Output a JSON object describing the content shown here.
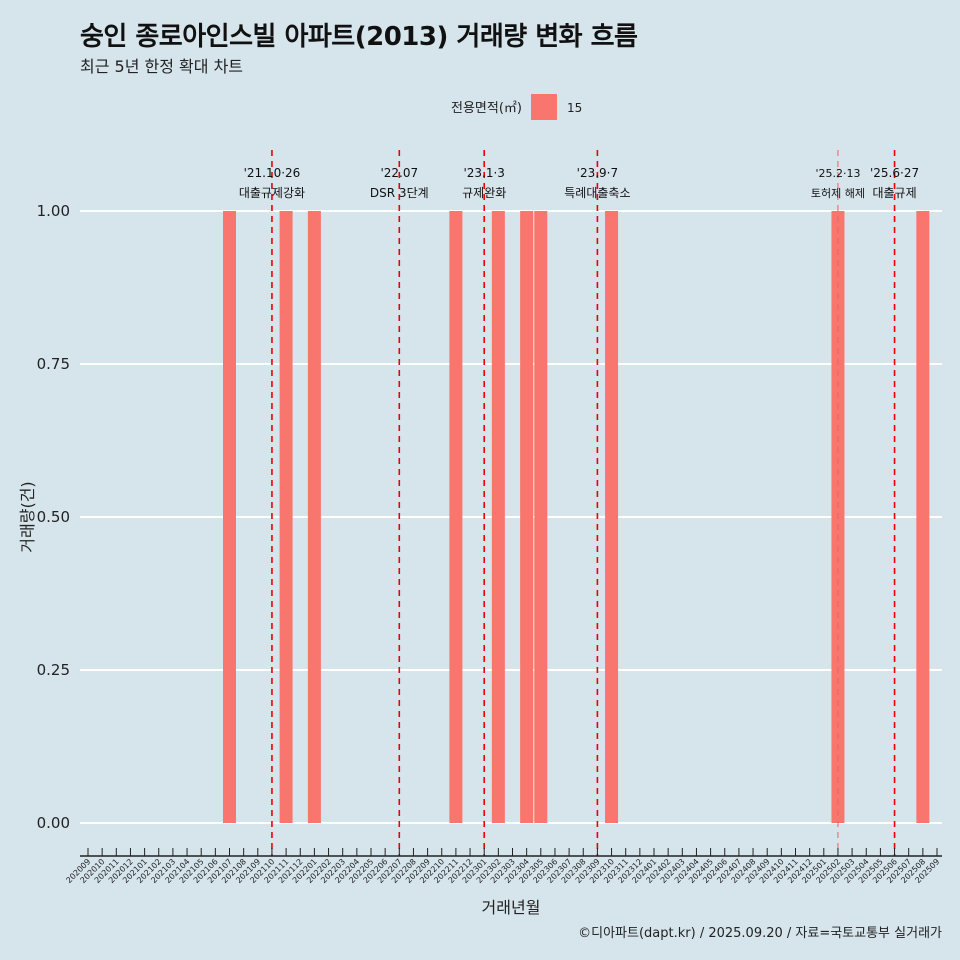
{
  "chart_data": {
    "type": "bar",
    "title": "숭인 종로아인스빌 아파트(2013) 거래량 변화 흐름",
    "subtitle": "최근 5년 한정 확대 차트",
    "xlabel": "거래년월",
    "ylabel": "거래량(건)",
    "ylim": [
      0,
      1
    ],
    "yticks": [
      "0.00",
      "0.25",
      "0.50",
      "0.75",
      "1.00"
    ],
    "legend": {
      "title": "전용면적(㎡)",
      "entries": [
        "15"
      ],
      "position": "top"
    },
    "categories": [
      "202009",
      "202010",
      "202011",
      "202012",
      "202101",
      "202102",
      "202103",
      "202104",
      "202105",
      "202106",
      "202107",
      "202108",
      "202109",
      "202110",
      "202111",
      "202112",
      "202201",
      "202202",
      "202203",
      "202204",
      "202205",
      "202206",
      "202207",
      "202208",
      "202209",
      "202210",
      "202211",
      "202212",
      "202301",
      "202302",
      "202303",
      "202304",
      "202305",
      "202306",
      "202307",
      "202308",
      "202309",
      "202310",
      "202311",
      "202312",
      "202401",
      "202402",
      "202403",
      "202404",
      "202405",
      "202406",
      "202407",
      "202408",
      "202409",
      "202410",
      "202411",
      "202412",
      "202501",
      "202502",
      "202503",
      "202504",
      "202505",
      "202506",
      "202507",
      "202508",
      "202509"
    ],
    "series": [
      {
        "name": "15",
        "color": "#f8766d",
        "points": [
          {
            "x": "202107",
            "y": 1
          },
          {
            "x": "202111",
            "y": 1
          },
          {
            "x": "202201",
            "y": 1
          },
          {
            "x": "202211",
            "y": 1
          },
          {
            "x": "202302",
            "y": 1
          },
          {
            "x": "202304",
            "y": 1
          },
          {
            "x": "202305",
            "y": 1
          },
          {
            "x": "202310",
            "y": 1
          },
          {
            "x": "202502",
            "y": 1
          },
          {
            "x": "202508",
            "y": 1
          }
        ]
      }
    ],
    "annotations": [
      {
        "x": "202110",
        "line1": "'21.10·26",
        "line2": "대출규제강화",
        "style": "bold"
      },
      {
        "x": "202207",
        "line1": "'22.07",
        "line2": "DSR 3단계",
        "style": "bold"
      },
      {
        "x": "202301",
        "line1": "'23.1·3",
        "line2": "규제완화",
        "style": "bold"
      },
      {
        "x": "202309",
        "line1": "'23.9·7",
        "line2": "특례대출축소",
        "style": "bold"
      },
      {
        "x": "202502",
        "line1": "'25.2·13",
        "line2": "토허제 해제",
        "style": "light"
      },
      {
        "x": "202506",
        "line1": "'25.6·27",
        "line2": "대출규제",
        "style": "bold"
      }
    ]
  },
  "caption": "©디아파트(dapt.kr) / 2025.09.20 / 자료=국토교통부 실거래가"
}
